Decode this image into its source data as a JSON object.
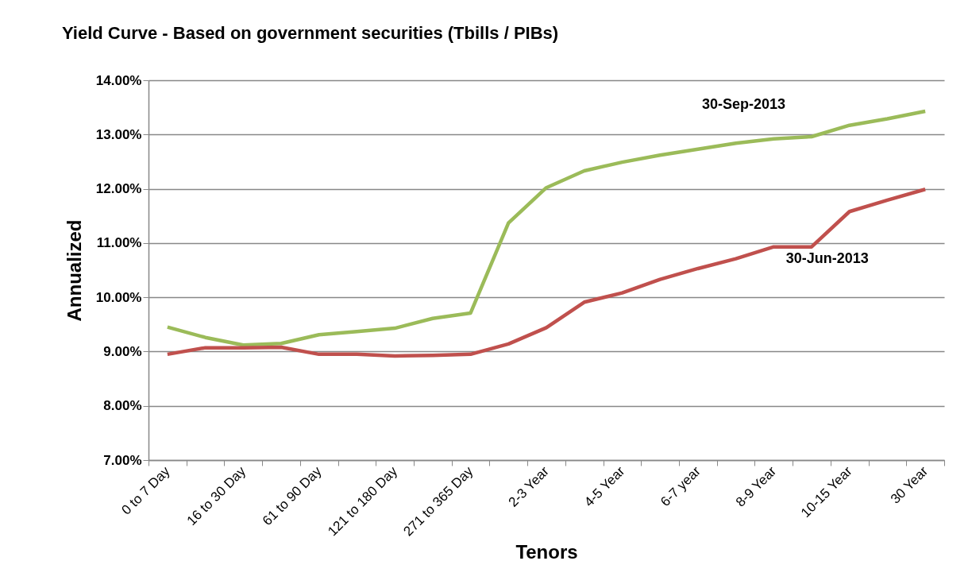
{
  "chart_data": {
    "type": "line",
    "title": "Yield Curve  -  Based on government securities (Tbills / PIBs)",
    "xlabel": "Tenors",
    "ylabel": "Annualized",
    "categories": [
      "0 to 7 Day",
      null,
      "16 to 30 Day",
      null,
      "61 to 90 Day",
      null,
      "121 to 180 Day",
      null,
      "271 to 365 Day",
      null,
      "2-3 Year",
      null,
      "4-5 Year",
      null,
      "6-7 year",
      null,
      "8-9 Year",
      null,
      "10-15 Year",
      null,
      "30 Year"
    ],
    "series": [
      {
        "name": "30-Sep-2013",
        "color": "#9bbb59",
        "values": [
          9.45,
          9.26,
          9.12,
          9.15,
          9.31,
          9.37,
          9.43,
          9.61,
          9.71,
          11.37,
          12.02,
          12.33,
          12.49,
          12.62,
          12.73,
          12.84,
          12.92,
          12.96,
          13.17,
          13.29,
          13.43
        ]
      },
      {
        "name": "30-Jun-2013",
        "color": "#c0504d",
        "values": [
          8.95,
          9.07,
          9.07,
          9.08,
          8.95,
          8.95,
          8.92,
          8.93,
          8.95,
          9.14,
          9.44,
          9.91,
          10.08,
          10.33,
          10.53,
          10.71,
          10.93,
          10.93,
          11.58,
          11.79,
          11.99
        ]
      }
    ],
    "ylim": [
      7,
      14
    ],
    "yticks": [
      {
        "value": 7,
        "label": "7.00%"
      },
      {
        "value": 8,
        "label": "8.00%"
      },
      {
        "value": 9,
        "label": "9.00%"
      },
      {
        "value": 10,
        "label": "10.00%"
      },
      {
        "value": 11,
        "label": "11.00%"
      },
      {
        "value": 12,
        "label": "12.00%"
      },
      {
        "value": 13,
        "label": "13.00%"
      },
      {
        "value": 14,
        "label": "14.00%"
      }
    ],
    "grid": "y",
    "legend": false
  }
}
